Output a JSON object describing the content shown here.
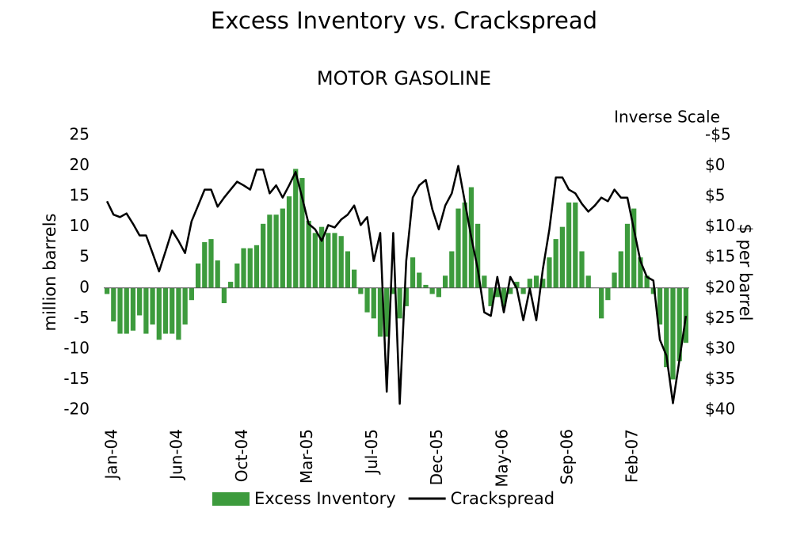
{
  "chart_data": {
    "type": "bar",
    "title": "Excess Inventory vs. Crackspread",
    "subtitle": "MOTOR GASOLINE",
    "y_label": "million barrels",
    "y2_label": "$ per barrel",
    "y2_note": "Inverse Scale",
    "y2_inverted": true,
    "categories": [
      "Jan-04",
      null,
      null,
      null,
      null,
      null,
      null,
      null,
      null,
      null,
      "Jun-04",
      null,
      null,
      null,
      null,
      null,
      null,
      null,
      null,
      null,
      "Oct-04",
      null,
      null,
      null,
      null,
      null,
      null,
      null,
      null,
      null,
      "Mar-05",
      null,
      null,
      null,
      null,
      null,
      null,
      null,
      null,
      null,
      "Jul-05",
      null,
      null,
      null,
      null,
      null,
      null,
      null,
      null,
      null,
      "Dec-05",
      null,
      null,
      null,
      null,
      null,
      null,
      null,
      null,
      null,
      "May-06",
      null,
      null,
      null,
      null,
      null,
      null,
      null,
      null,
      null,
      "Sep-06",
      null,
      null,
      null,
      null,
      null,
      null,
      null,
      null,
      null,
      "Feb-07",
      null,
      null,
      null,
      null,
      null,
      null,
      null,
      null,
      null
    ],
    "series": [
      {
        "name": "Excess Inventory",
        "type": "bar",
        "color": "#3d9b3d",
        "values": [
          -1,
          -5.5,
          -7.5,
          -7.5,
          -7,
          -4.5,
          -7.5,
          -6,
          -8.5,
          -7.5,
          -7.5,
          -8.5,
          -6,
          -2,
          4,
          7.5,
          8,
          4.5,
          -2.5,
          1,
          4,
          6.5,
          6.5,
          7,
          10.5,
          12,
          12,
          13,
          15,
          19.5,
          18,
          11,
          9,
          10,
          9,
          9,
          8.5,
          6,
          3,
          -1,
          -4,
          -5,
          -8,
          -8,
          -1,
          -5,
          -3,
          5,
          2.5,
          0.5,
          -1,
          -1.5,
          2,
          6,
          13,
          14,
          16.5,
          10.5,
          2,
          -3,
          -1.5,
          -3,
          -1,
          1,
          -1,
          1.5,
          2,
          1.5,
          5,
          8,
          10,
          14,
          14,
          6,
          2,
          0,
          -5,
          -2,
          2.5,
          6,
          10.5,
          13,
          5,
          2,
          -1,
          -6,
          -13,
          -15,
          -12,
          -9
        ]
      },
      {
        "name": "Crackspread",
        "type": "line",
        "color": "#000000",
        "axis": "y2",
        "values": [
          5.8,
          8,
          8.4,
          7.8,
          9.5,
          11.4,
          11.4,
          14.3,
          17.3,
          14,
          10.6,
          12.3,
          14.3,
          9.1,
          6.5,
          3.9,
          3.9,
          6.7,
          5.2,
          3.9,
          2.6,
          3.2,
          3.9,
          0.6,
          0.6,
          4.5,
          3.2,
          5.2,
          3.2,
          1,
          5.2,
          9.5,
          10.4,
          12.3,
          9.7,
          10.1,
          8.8,
          8,
          6.5,
          9.7,
          8.4,
          15.6,
          11,
          37,
          11,
          39,
          15.6,
          5.2,
          3.2,
          2.3,
          7.1,
          10.4,
          6.5,
          4.5,
          0,
          5.8,
          11.7,
          16.9,
          24,
          24.6,
          18.2,
          24,
          18.2,
          20.1,
          25.3,
          20.1,
          25.3,
          16.9,
          10.4,
          1.9,
          1.9,
          3.9,
          4.5,
          6.2,
          7.5,
          6.5,
          5.2,
          5.8,
          3.9,
          5.2,
          5.2,
          10.4,
          15.6,
          18.2,
          18.8,
          28.5,
          31.1,
          38.9,
          31.8,
          24.6
        ]
      }
    ],
    "ylim": [
      -20,
      25
    ],
    "yticks": [
      -20,
      -15,
      -10,
      -5,
      0,
      5,
      10,
      15,
      20,
      25
    ],
    "y2lim": [
      -5,
      40
    ],
    "y2ticks": [
      {
        "value": -5,
        "label": "-$5"
      },
      {
        "value": 0,
        "label": "$0"
      },
      {
        "value": 5,
        "label": "$5"
      },
      {
        "value": 10,
        "label": "$10"
      },
      {
        "value": 15,
        "label": "$15"
      },
      {
        "value": 20,
        "label": "$20"
      },
      {
        "value": 25,
        "label": "$25"
      },
      {
        "value": 30,
        "label": "$30"
      },
      {
        "value": 35,
        "label": "$35"
      },
      {
        "value": 40,
        "label": "$40"
      }
    ],
    "grid": false,
    "legend": "bottom"
  }
}
